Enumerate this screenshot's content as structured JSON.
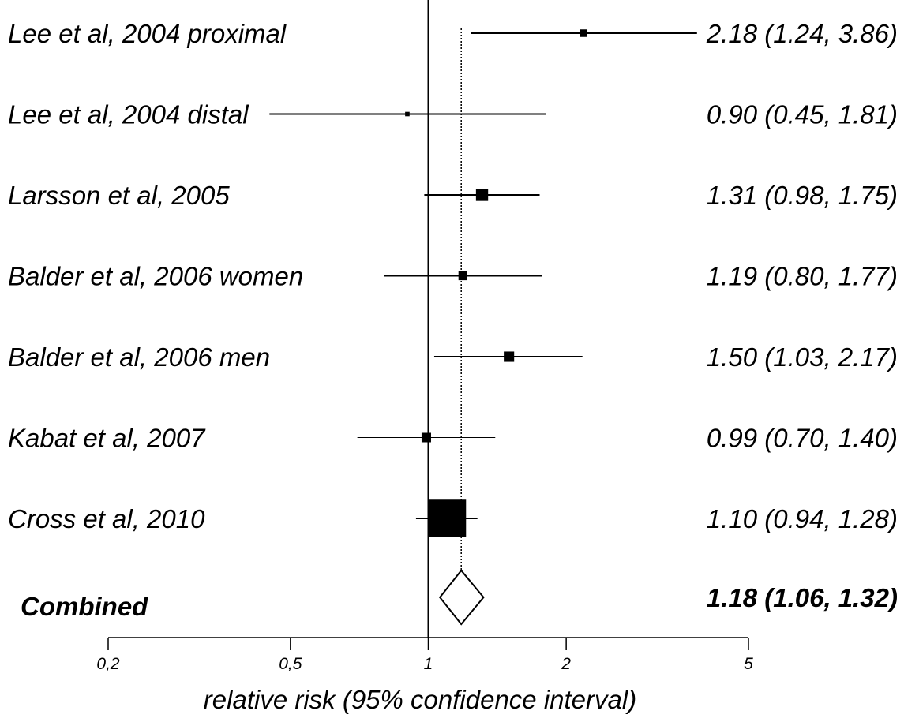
{
  "chart_data": {
    "type": "forest",
    "xlabel": "relative risk (95% confidence interval)",
    "x_scale": "log",
    "xlim": [
      0.2,
      5
    ],
    "ticks": [
      {
        "value": 0.2,
        "label": "0,2"
      },
      {
        "value": 0.5,
        "label": "0,5"
      },
      {
        "value": 1,
        "label": "1"
      },
      {
        "value": 2,
        "label": "2"
      },
      {
        "value": 5,
        "label": "5"
      }
    ],
    "null_line": 1,
    "pooled_reference_line": 1.18,
    "studies": [
      {
        "label": "Lee et al, 2004 proximal",
        "rr": 2.18,
        "lower": 1.24,
        "upper": 3.86,
        "ci_text": "2.18 (1.24, 3.86)",
        "weight": 1
      },
      {
        "label": "Lee et al, 2004 distal",
        "rr": 0.9,
        "lower": 0.45,
        "upper": 1.81,
        "ci_text": "0.90 (0.45, 1.81)",
        "weight": 0.35
      },
      {
        "label": "Larsson et al, 2005",
        "rr": 1.31,
        "lower": 0.98,
        "upper": 1.75,
        "ci_text": "1.31 (0.98, 1.75)",
        "weight": 2.6
      },
      {
        "label": "Balder et al, 2006 women",
        "rr": 1.19,
        "lower": 0.8,
        "upper": 1.77,
        "ci_text": "1.19 (0.80, 1.77)",
        "weight": 1.4
      },
      {
        "label": "Balder et al, 2006 men",
        "rr": 1.5,
        "lower": 1.03,
        "upper": 2.17,
        "ci_text": "1.50 (1.03, 2.17)",
        "weight": 1.9
      },
      {
        "label": "Kabat et al, 2007",
        "rr": 0.99,
        "lower": 0.7,
        "upper": 1.4,
        "ci_text": "0.99 (0.70, 1.40)",
        "weight": 1.6
      },
      {
        "label": "Cross et al, 2010",
        "rr": 1.1,
        "lower": 0.94,
        "upper": 1.28,
        "ci_text": "1.10 (0.94, 1.28)",
        "weight": 25
      }
    ],
    "combined": {
      "label": "Combined",
      "rr": 1.18,
      "lower": 1.06,
      "upper": 1.32,
      "ci_text": "1.18 (1.06, 1.32)"
    }
  }
}
